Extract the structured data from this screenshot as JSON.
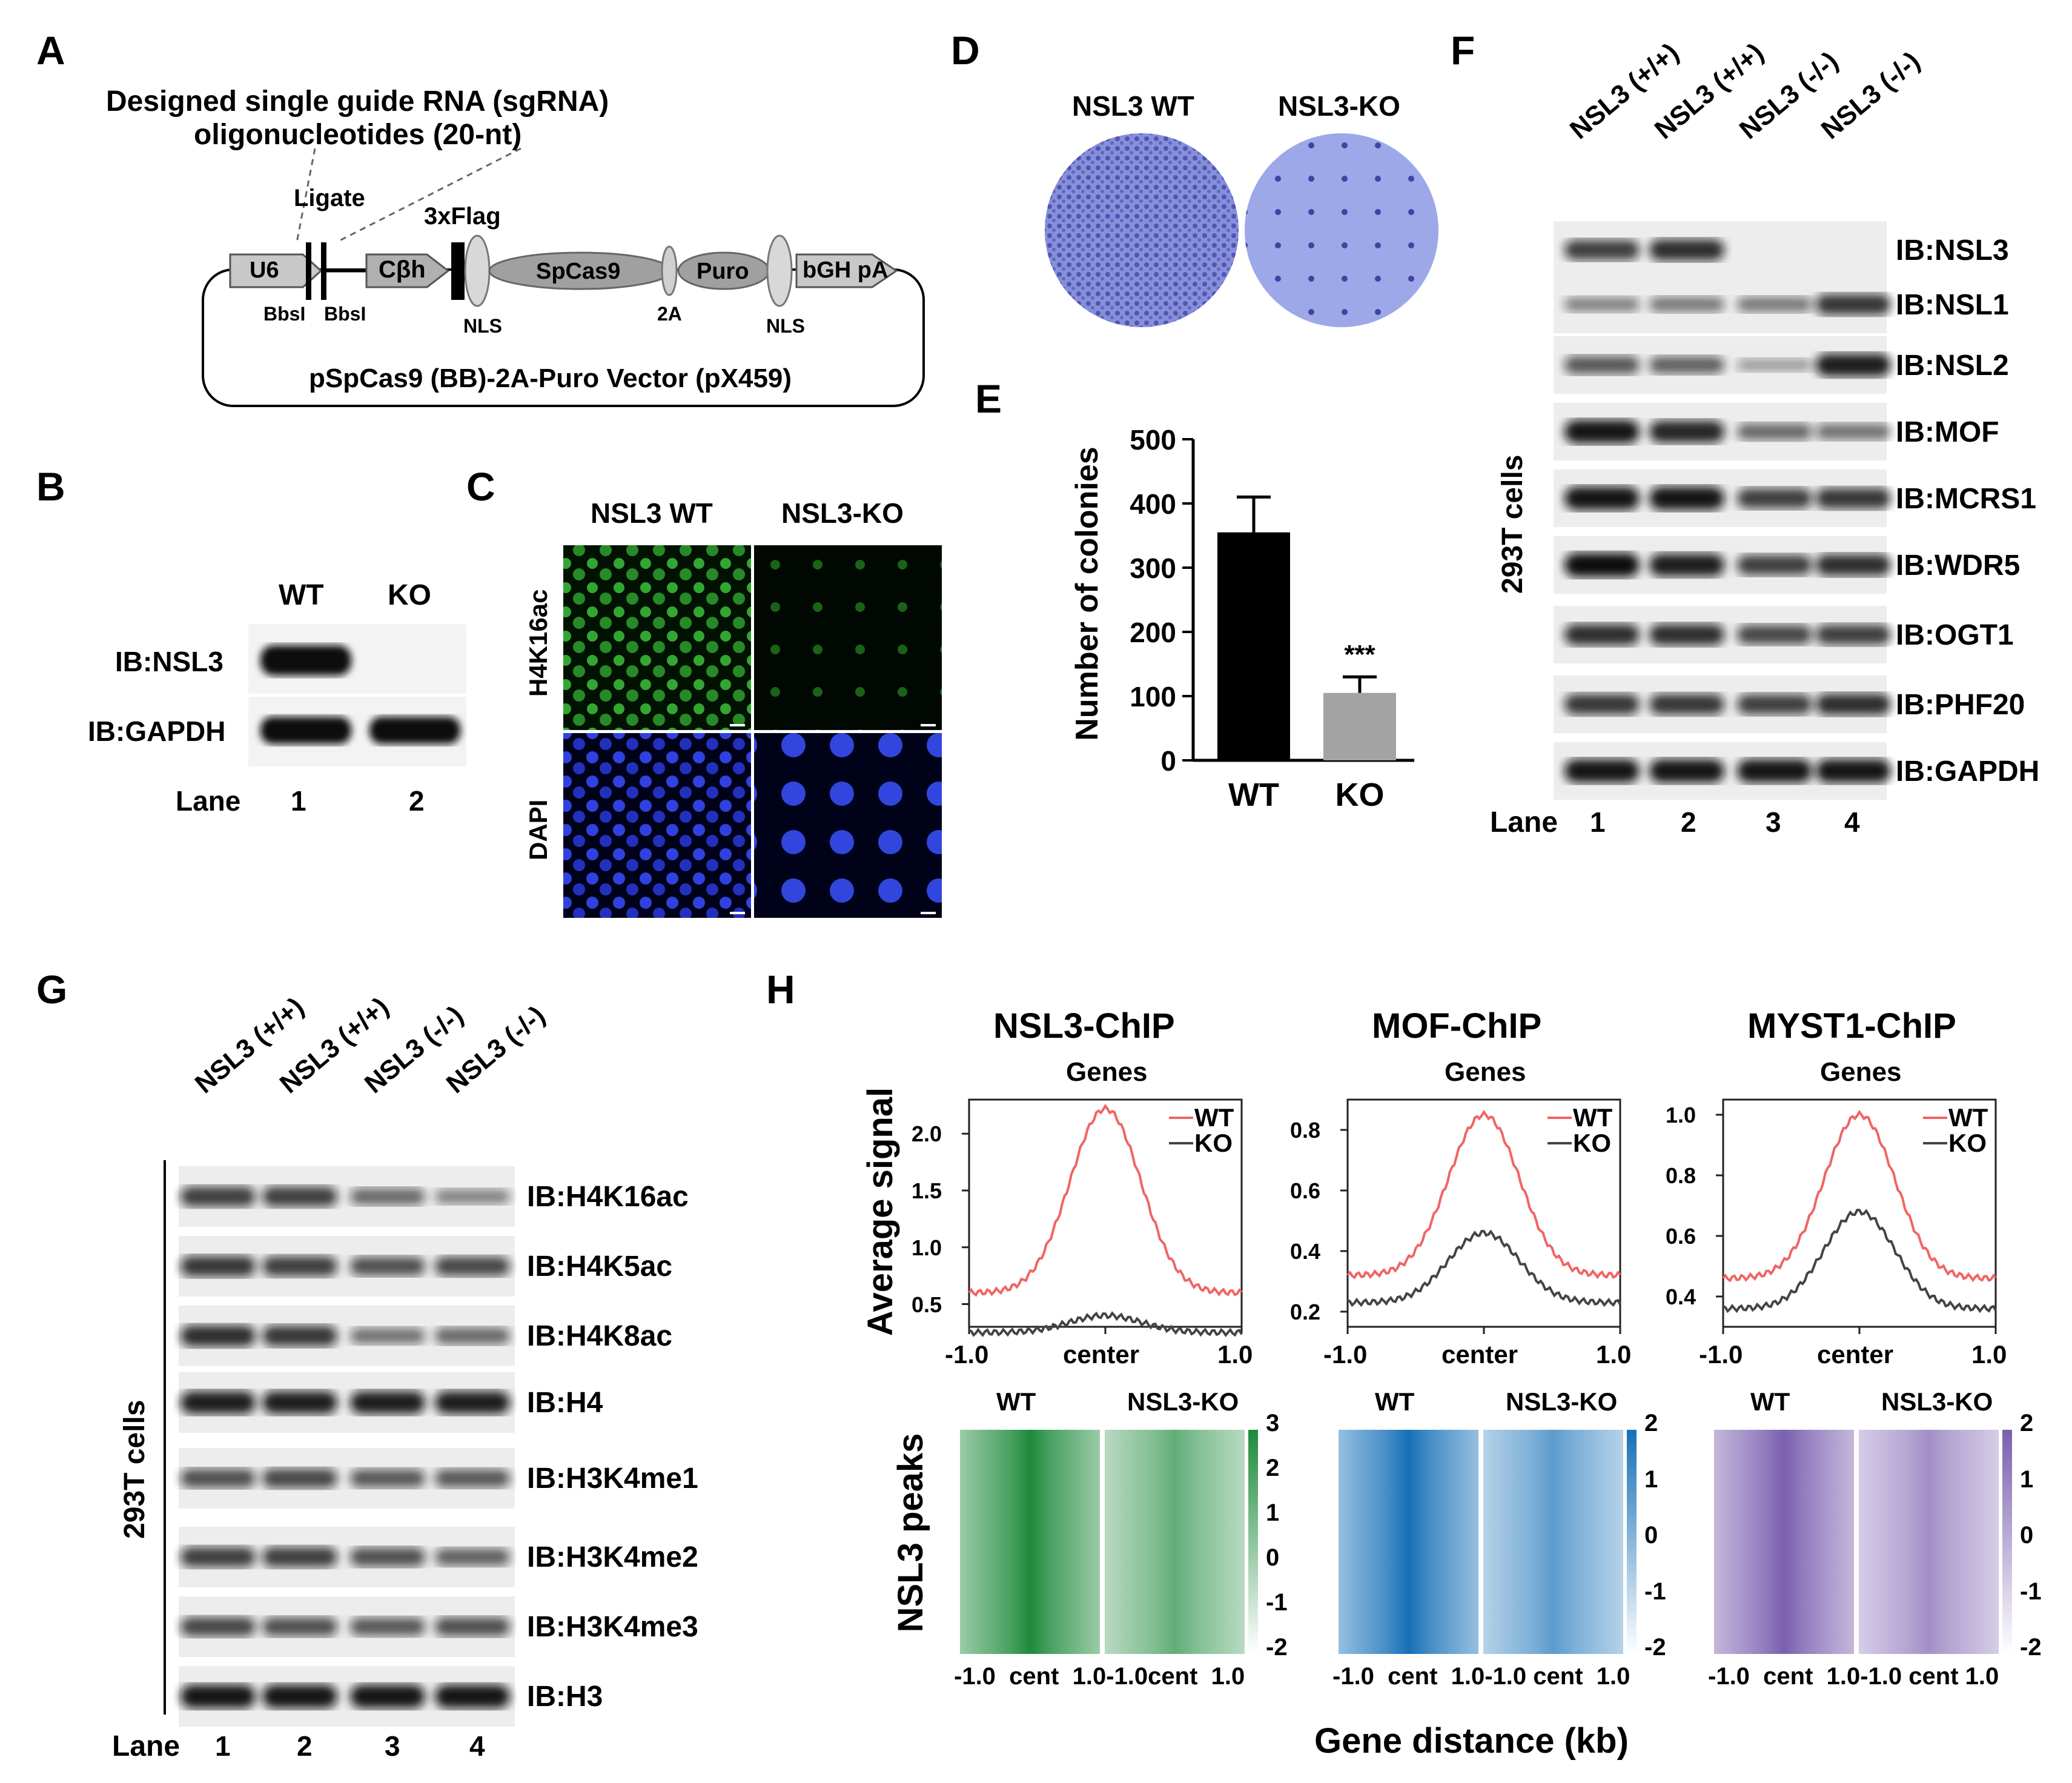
{
  "panels": {
    "A": "A",
    "B": "B",
    "C": "C",
    "D": "D",
    "E": "E",
    "F": "F",
    "G": "G",
    "H": "H"
  },
  "panelA": {
    "title1": "Designed single guide RNA (sgRNA)",
    "title2": "oligonucleotides (20-nt)",
    "ligate": "Ligate",
    "flag": "3xFlag",
    "u6": "U6",
    "cbh": "Cβh",
    "spcas9": "SpCas9",
    "puro": "Puro",
    "bgh": "bGH pA",
    "bbsi1": "BbsI",
    "bbsi2": "BbsI",
    "nls1": "NLS",
    "twoA": "2A",
    "nls2": "NLS",
    "vector": "pSpCas9 (BB)-2A-Puro Vector (pX459)"
  },
  "panelB": {
    "col1": "WT",
    "col2": "KO",
    "row1": "IB:NSL3",
    "row2": "IB:GAPDH",
    "lane": "Lane",
    "lane1": "1",
    "lane2": "2"
  },
  "panelC": {
    "col1": "NSL3 WT",
    "col2": "NSL3-KO",
    "row1": "H4K16ac",
    "row2": "DAPI"
  },
  "panelD": {
    "col1": "NSL3 WT",
    "col2": "NSL3-KO"
  },
  "panelE": {
    "chart_data": {
      "type": "bar",
      "categories": [
        "WT",
        "KO"
      ],
      "values": [
        355,
        105
      ],
      "errors": [
        55,
        25
      ],
      "ylabel": "Number of colonies",
      "ylim": [
        0,
        500
      ],
      "yticks": [
        "0",
        "100",
        "200",
        "300",
        "400",
        "500"
      ],
      "annotation": "***",
      "colors": [
        "#000000",
        "#a3a3a3"
      ]
    }
  },
  "panelF": {
    "cols": [
      "NSL3 (+/+)",
      "NSL3 (+/+)",
      "NSL3 (-/-)",
      "NSL3 (-/-)"
    ],
    "rows": [
      "IB:NSL3",
      "IB:NSL1",
      "IB:NSL2",
      "IB:MOF",
      "IB:MCRS1",
      "IB:WDR5",
      "IB:OGT1",
      "IB:PHF20",
      "IB:GAPDH"
    ],
    "side": "293T cells",
    "lane": "Lane",
    "lanes": [
      "1",
      "2",
      "3",
      "4"
    ]
  },
  "panelG": {
    "cols": [
      "NSL3 (+/+)",
      "NSL3 (+/+)",
      "NSL3 (-/-)",
      "NSL3 (-/-)"
    ],
    "rows": [
      "IB:H4K16ac",
      "IB:H4K5ac",
      "IB:H4K8ac",
      "IB:H4",
      "IB:H3K4me1",
      "IB:H3K4me2",
      "IB:H3K4me3",
      "IB:H3"
    ],
    "side": "293T cells",
    "lane": "Lane",
    "lanes": [
      "1",
      "2",
      "3",
      "4"
    ]
  },
  "panelH": {
    "ylabel": "Average signal",
    "heatmap_label": "NSL3 peaks",
    "xlabel": "Gene distance (kb)",
    "chart_data": [
      {
        "type": "line",
        "title": "NSL3-ChIP",
        "subtitle": "Genes",
        "xticks": [
          "-1.0",
          "center",
          "1.0"
        ],
        "yticks": [
          "0.5",
          "1.0",
          "1.5",
          "2.0"
        ],
        "ylim": [
          0.3,
          2.3
        ],
        "series": [
          {
            "name": "WT",
            "color": "#f06464",
            "peak": 2.22,
            "base": 0.6
          },
          {
            "name": "KO",
            "color": "#444444",
            "peak": 0.4,
            "base": 0.25
          }
        ]
      },
      {
        "type": "line",
        "title": "MOF-ChIP",
        "subtitle": "Genes",
        "xticks": [
          "-1.0",
          "center",
          "1.0"
        ],
        "yticks": [
          "0.2",
          "0.4",
          "0.6",
          "0.8"
        ],
        "ylim": [
          0.15,
          0.9
        ],
        "series": [
          {
            "name": "WT",
            "color": "#f06464",
            "peak": 0.85,
            "base": 0.32
          },
          {
            "name": "KO",
            "color": "#444444",
            "peak": 0.46,
            "base": 0.23
          }
        ]
      },
      {
        "type": "line",
        "title": "MYST1-ChIP",
        "subtitle": "Genes",
        "xticks": [
          "-1.0",
          "center",
          "1.0"
        ],
        "yticks": [
          "0.4",
          "0.6",
          "0.8",
          "1.0"
        ],
        "ylim": [
          0.3,
          1.05
        ],
        "series": [
          {
            "name": "WT",
            "color": "#f06464",
            "peak": 1.0,
            "base": 0.46
          },
          {
            "name": "KO",
            "color": "#444444",
            "peak": 0.68,
            "base": 0.36
          }
        ]
      }
    ],
    "heatmaps": [
      {
        "left": "WT",
        "right": "NSL3-KO",
        "ticks": [
          "3",
          "2",
          "1",
          "0",
          "-1",
          "-2"
        ],
        "xticks": "-1.0  cent  1.0-1.0cent  1.0",
        "color": "#1e8a3c"
      },
      {
        "left": "WT",
        "right": "NSL3-KO",
        "ticks": [
          "2",
          "1",
          "0",
          "-1",
          "-2"
        ],
        "xticks": "-1.0  cent  1.0-1.0 cent  1.0",
        "color": "#1670b8"
      },
      {
        "left": "WT",
        "right": "NSL3-KO",
        "ticks": [
          "2",
          "1",
          "0",
          "-1",
          "-2"
        ],
        "xticks": "-1.0  cent  1.0-1.0 cent 1.0",
        "color": "#7a5fb0"
      }
    ]
  }
}
